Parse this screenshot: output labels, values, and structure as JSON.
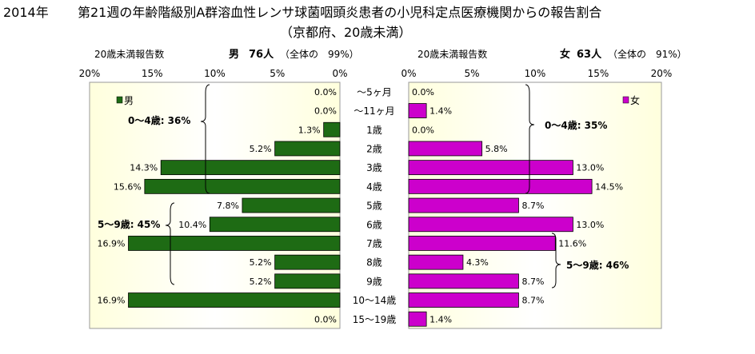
{
  "title": {
    "year": "2014年",
    "main": "第21週の年齢階級別A群溶血性レンサ球菌咽頭炎患者の小児科定点医療機関からの報告割合",
    "sub": "（京都府、20歳未満）"
  },
  "colors": {
    "male": "#1e6b14",
    "female": "#cc00cc",
    "bg_gradient_edge": "#ffffdd",
    "bg_gradient_mid": "#ffffff"
  },
  "chart_data": {
    "type": "bar",
    "categories": [
      "～5ヶ月",
      "～11ヶ月",
      "1歳",
      "2歳",
      "3歳",
      "4歳",
      "5歳",
      "6歳",
      "7歳",
      "8歳",
      "9歳",
      "10～14歳",
      "15～19歳"
    ],
    "xlim": [
      0,
      20
    ],
    "x_ticks": [
      "20%",
      "15%",
      "10%",
      "5%",
      "0%"
    ],
    "x_ticks_right": [
      "0%",
      "5%",
      "10%",
      "15%",
      "20%"
    ],
    "series": [
      {
        "name": "男",
        "side": "left",
        "header_left": "20歳未満報告数",
        "header_label": "男",
        "header_count": "76人",
        "header_share": "（全体の　99%）",
        "values": [
          0.0,
          0.0,
          1.3,
          5.2,
          14.3,
          15.6,
          7.8,
          10.4,
          16.9,
          5.2,
          5.2,
          16.9,
          0.0
        ],
        "data_labels": [
          "0.0%",
          "0.0%",
          "1.3%",
          "5.2%",
          "14.3%",
          "15.6%",
          "7.8%",
          "10.4%",
          "16.9%",
          "5.2%",
          "5.2%",
          "16.9%",
          "0.0%"
        ],
        "group_annotations": [
          "0～4歳: 36%",
          "5～9歳: 45%"
        ]
      },
      {
        "name": "女",
        "side": "right",
        "header_left": "20歳未満報告数",
        "header_label": "女",
        "header_count": "63人",
        "header_share": "（全体の　91%）",
        "values": [
          0.0,
          1.4,
          0.0,
          5.8,
          13.0,
          14.5,
          8.7,
          13.0,
          11.6,
          4.3,
          8.7,
          8.7,
          1.4
        ],
        "data_labels": [
          "0.0%",
          "1.4%",
          "0.0%",
          "5.8%",
          "13.0%",
          "14.5%",
          "8.7%",
          "13.0%",
          "11.6%",
          "4.3%",
          "8.7%",
          "8.7%",
          "1.4%"
        ],
        "group_annotations": [
          "0～4歳: 35%",
          "5～9歳: 46%"
        ]
      }
    ]
  }
}
